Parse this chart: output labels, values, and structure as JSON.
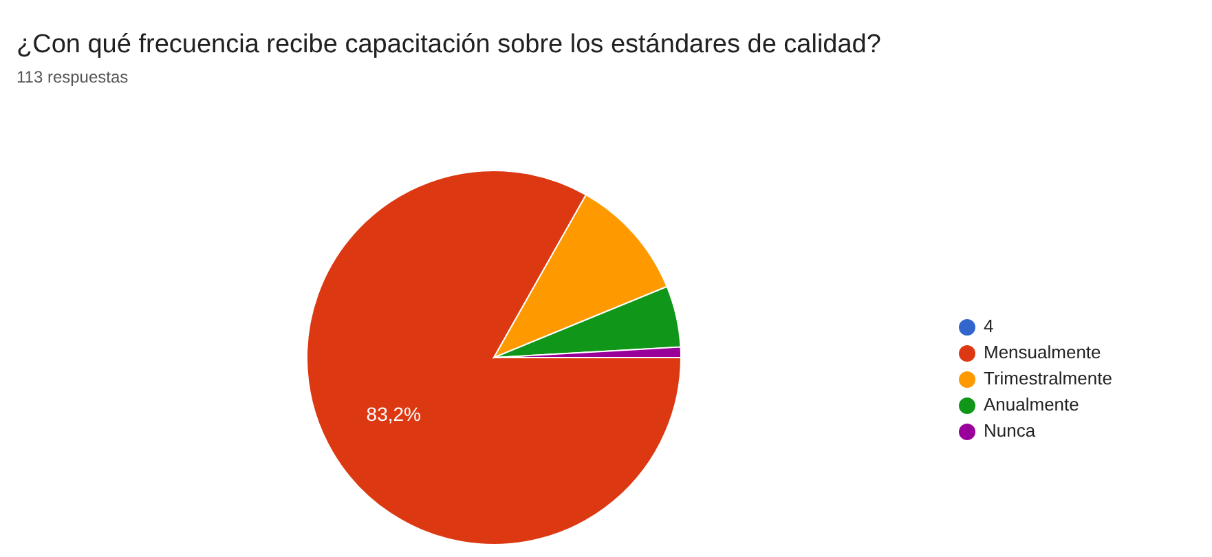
{
  "chart_data": {
    "type": "pie",
    "title": "¿Con qué frecuencia recibe capacitación sobre los estándares de calidad?",
    "subtitle": "113 respuestas",
    "categories": [
      "4",
      "Mensualmente",
      "Trimestralmente",
      "Anualmente",
      "Nunca"
    ],
    "values": [
      0,
      83.2,
      10.6,
      5.3,
      0.9
    ],
    "colors": [
      "#3366cc",
      "#dc3912",
      "#ff9900",
      "#109618",
      "#990099"
    ],
    "value_labels": [
      null,
      "83,2%",
      null,
      null,
      null
    ],
    "legend": "right"
  }
}
